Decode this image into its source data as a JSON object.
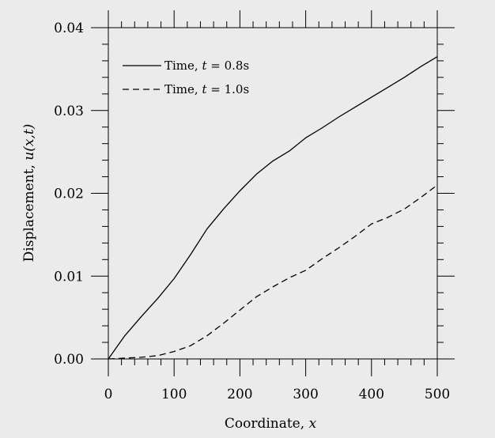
{
  "chart_data": {
    "type": "line",
    "title": "",
    "xlabel": "Coordinate, ",
    "xlabel_var": "x",
    "ylabel": "Displacement, ",
    "ylabel_var": "u(x,t)",
    "xlim": [
      0,
      500
    ],
    "ylim": [
      0,
      0.04
    ],
    "grid": false,
    "legend_position": "top-left",
    "x_ticks": [
      0,
      100,
      200,
      300,
      400,
      500
    ],
    "x_tick_labels": [
      "0",
      "100",
      "200",
      "300",
      "400",
      "500"
    ],
    "y_ticks": [
      0,
      0.01,
      0.02,
      0.03,
      0.04
    ],
    "y_tick_labels": [
      "0.00",
      "0.01",
      "0.02",
      "0.03",
      "0.04"
    ],
    "colors": {
      "background": "#ebebeb",
      "line": "#000000",
      "plot_area": "#ebebeb"
    },
    "series": [
      {
        "name": "Time, t = 0.8s",
        "name_prefix": "Time, ",
        "name_var": "t",
        "name_suffix": " = 0.8s",
        "style": "solid",
        "x": [
          0,
          25,
          50,
          75,
          100,
          125,
          150,
          175,
          200,
          225,
          250,
          275,
          300,
          325,
          350,
          375,
          400,
          425,
          450,
          475,
          500
        ],
        "y": [
          0,
          0.0028,
          0.0051,
          0.0073,
          0.0097,
          0.0126,
          0.0157,
          0.0181,
          0.0203,
          0.0223,
          0.0239,
          0.0251,
          0.0267,
          0.0279,
          0.0292,
          0.0304,
          0.0316,
          0.0328,
          0.034,
          0.0353,
          0.0365
        ]
      },
      {
        "name": "Time, t = 1.0s",
        "name_prefix": "Time, ",
        "name_var": "t",
        "name_suffix": " = 1.0s",
        "style": "dashed",
        "x": [
          0,
          25,
          50,
          75,
          100,
          125,
          150,
          175,
          200,
          225,
          250,
          275,
          300,
          325,
          350,
          375,
          400,
          425,
          450,
          475,
          500
        ],
        "y": [
          0,
          0.0001,
          0.0002,
          0.0004,
          0.0009,
          0.0016,
          0.0028,
          0.0043,
          0.0059,
          0.0075,
          0.0087,
          0.0098,
          0.0107,
          0.0121,
          0.0134,
          0.0148,
          0.0163,
          0.0171,
          0.0181,
          0.0195,
          0.021
        ]
      }
    ]
  }
}
